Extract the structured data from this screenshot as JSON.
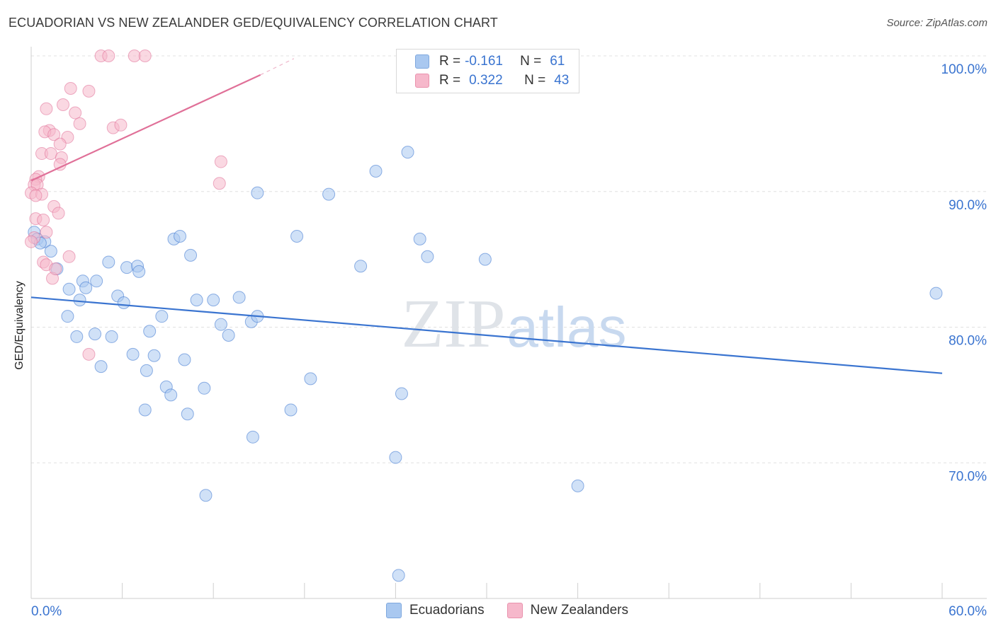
{
  "header": {
    "title": "ECUADORIAN VS NEW ZEALANDER GED/EQUIVALENCY CORRELATION CHART",
    "source": "Source: ZipAtlas.com"
  },
  "watermark": {
    "part1": "ZIP",
    "part2": "atlas"
  },
  "legend": {
    "rows": [
      {
        "r_label": "R =",
        "r_value": "-0.161",
        "n_label": "N =",
        "n_value": "61",
        "color": "#a9c8f0"
      },
      {
        "r_label": "R =",
        "r_value": "0.322",
        "n_label": "N =",
        "n_value": "43",
        "color": "#f6b8cb"
      }
    ]
  },
  "bottom_legend": [
    {
      "label": "Ecuadorians",
      "color": "#a9c8f0"
    },
    {
      "label": "New Zealanders",
      "color": "#f6b8cb"
    }
  ],
  "chart_data": {
    "type": "scatter",
    "title": "ECUADORIAN VS NEW ZEALANDER GED/EQUIVALENCY CORRELATION CHART",
    "xlabel": "",
    "ylabel": "GED/Equivalency",
    "xlim": [
      0,
      60
    ],
    "ylim": [
      60,
      100
    ],
    "x_tick_labels": [
      "0.0%",
      "60.0%"
    ],
    "y_ticks": [
      70,
      80,
      90,
      100
    ],
    "y_tick_labels": [
      "70.0%",
      "80.0%",
      "90.0%",
      "100.0%"
    ],
    "grid": "horizontal dashed",
    "series": [
      {
        "name": "Ecuadorians",
        "color": "#3a74d0",
        "fill": "#a9c8f0",
        "trend": {
          "x": [
            0,
            60
          ],
          "y": [
            82.2,
            76.6
          ]
        },
        "points": [
          [
            0.2,
            87.0
          ],
          [
            0.4,
            86.5
          ],
          [
            0.9,
            86.3
          ],
          [
            0.6,
            86.2
          ],
          [
            1.3,
            85.6
          ],
          [
            1.7,
            84.3
          ],
          [
            3.4,
            83.4
          ],
          [
            4.3,
            83.4
          ],
          [
            3.6,
            82.9
          ],
          [
            2.5,
            82.8
          ],
          [
            5.1,
            84.8
          ],
          [
            6.3,
            84.4
          ],
          [
            7.0,
            84.5
          ],
          [
            7.1,
            84.1
          ],
          [
            9.4,
            86.5
          ],
          [
            9.8,
            86.7
          ],
          [
            10.5,
            85.3
          ],
          [
            17.5,
            86.7
          ],
          [
            21.7,
            84.5
          ],
          [
            24.8,
            92.9
          ],
          [
            22.7,
            91.5
          ],
          [
            14.9,
            89.9
          ],
          [
            19.6,
            89.8
          ],
          [
            25.6,
            86.5
          ],
          [
            26.1,
            85.2
          ],
          [
            29.9,
            85.0
          ],
          [
            59.6,
            82.5
          ],
          [
            3.2,
            82.0
          ],
          [
            5.7,
            82.3
          ],
          [
            6.1,
            81.8
          ],
          [
            10.9,
            82.0
          ],
          [
            12.0,
            82.0
          ],
          [
            13.7,
            82.2
          ],
          [
            8.6,
            80.8
          ],
          [
            12.5,
            80.2
          ],
          [
            7.8,
            79.7
          ],
          [
            13.0,
            79.4
          ],
          [
            14.5,
            80.4
          ],
          [
            14.9,
            80.8
          ],
          [
            2.4,
            80.8
          ],
          [
            4.2,
            79.5
          ],
          [
            5.3,
            79.3
          ],
          [
            3.0,
            79.3
          ],
          [
            6.7,
            78.0
          ],
          [
            8.1,
            77.9
          ],
          [
            10.1,
            77.6
          ],
          [
            4.6,
            77.1
          ],
          [
            7.6,
            76.8
          ],
          [
            8.9,
            75.6
          ],
          [
            9.2,
            75.0
          ],
          [
            11.4,
            75.5
          ],
          [
            18.4,
            76.2
          ],
          [
            17.1,
            73.9
          ],
          [
            24.4,
            75.1
          ],
          [
            7.5,
            73.9
          ],
          [
            10.3,
            73.6
          ],
          [
            14.6,
            71.9
          ],
          [
            24.0,
            70.4
          ],
          [
            36.0,
            68.3
          ],
          [
            11.5,
            67.6
          ],
          [
            24.2,
            61.7
          ]
        ]
      },
      {
        "name": "New Zealanders",
        "color": "#e07098",
        "fill": "#f6b8cb",
        "trend": {
          "x": [
            0,
            15.1
          ],
          "y": [
            90.8,
            98.6
          ]
        },
        "trend_dashed": {
          "x": [
            15.1,
            17.3
          ],
          "y": [
            98.6,
            99.8
          ]
        },
        "points": [
          [
            4.6,
            100.0
          ],
          [
            5.1,
            100.0
          ],
          [
            6.8,
            100.0
          ],
          [
            7.5,
            100.0
          ],
          [
            2.6,
            97.6
          ],
          [
            3.8,
            97.4
          ],
          [
            2.1,
            96.4
          ],
          [
            1.0,
            96.1
          ],
          [
            2.9,
            95.8
          ],
          [
            3.2,
            95.0
          ],
          [
            5.4,
            94.7
          ],
          [
            5.9,
            94.9
          ],
          [
            1.2,
            94.5
          ],
          [
            0.9,
            94.4
          ],
          [
            1.5,
            94.2
          ],
          [
            2.4,
            94.0
          ],
          [
            1.9,
            93.5
          ],
          [
            0.7,
            92.8
          ],
          [
            1.3,
            92.8
          ],
          [
            2.0,
            92.5
          ],
          [
            1.9,
            92.0
          ],
          [
            12.5,
            92.2
          ],
          [
            0.5,
            91.1
          ],
          [
            0.3,
            90.9
          ],
          [
            0.2,
            90.5
          ],
          [
            0.4,
            90.5
          ],
          [
            12.4,
            90.6
          ],
          [
            0.0,
            89.9
          ],
          [
            0.7,
            89.8
          ],
          [
            0.3,
            89.7
          ],
          [
            1.5,
            88.9
          ],
          [
            1.8,
            88.4
          ],
          [
            0.3,
            88.0
          ],
          [
            0.8,
            87.9
          ],
          [
            1.0,
            87.0
          ],
          [
            2.5,
            85.2
          ],
          [
            0.8,
            84.8
          ],
          [
            1.4,
            83.6
          ],
          [
            3.8,
            78.0
          ],
          [
            0.2,
            86.6
          ],
          [
            0.0,
            86.3
          ],
          [
            1.0,
            84.6
          ],
          [
            1.6,
            84.3
          ]
        ]
      }
    ]
  }
}
